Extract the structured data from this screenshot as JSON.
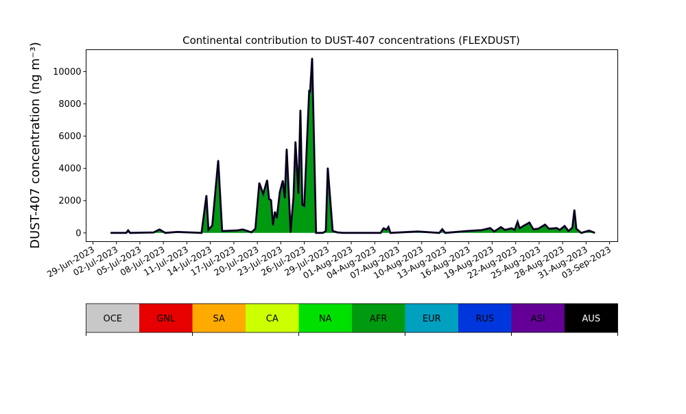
{
  "chart_data": {
    "type": "area",
    "stacked": true,
    "title": "Continental contribution to DUST-407 concentrations (FLEXDUST)",
    "ylabel": "DUST-407 concentration (ng m⁻³)",
    "xlabel": "",
    "xlim": [
      "2023-06-28T03:00",
      "2023-09-04T01:00"
    ],
    "ylim": [
      -540,
      11360
    ],
    "yticks": [
      0,
      2000,
      4000,
      6000,
      8000,
      10000
    ],
    "xticks": [
      "29-Jun-2023",
      "02-Jul-2023",
      "05-Jul-2023",
      "08-Jul-2023",
      "11-Jul-2023",
      "14-Jul-2023",
      "17-Jul-2023",
      "20-Jul-2023",
      "23-Jul-2023",
      "26-Jul-2023",
      "29-Jul-2023",
      "01-Aug-2023",
      "04-Aug-2023",
      "07-Aug-2023",
      "10-Aug-2023",
      "13-Aug-2023",
      "16-Aug-2023",
      "19-Aug-2023",
      "22-Aug-2023",
      "25-Aug-2023",
      "28-Aug-2023",
      "31-Aug-2023",
      "03-Sep-2023"
    ],
    "grid": false,
    "x": [
      "2023-07-01T06:00",
      "2023-07-03T06:00",
      "2023-07-03T12:00",
      "2023-07-03T18:00",
      "2023-07-06T18:00",
      "2023-07-07T12:00",
      "2023-07-08T06:00",
      "2023-07-09T18:00",
      "2023-07-12T21:00",
      "2023-07-13T12:00",
      "2023-07-13T18:00",
      "2023-07-14T06:00",
      "2023-07-15T00:00",
      "2023-07-15T12:00",
      "2023-07-17T12:00",
      "2023-07-18T03:00",
      "2023-07-19T06:00",
      "2023-07-19T18:00",
      "2023-07-20T06:00",
      "2023-07-20T18:00",
      "2023-07-21T06:00",
      "2023-07-21T12:00",
      "2023-07-21T18:00",
      "2023-07-22T00:00",
      "2023-07-22T06:00",
      "2023-07-22T12:00",
      "2023-07-22T21:00",
      "2023-07-23T06:00",
      "2023-07-23T12:00",
      "2023-07-23T18:00",
      "2023-07-24T06:00",
      "2023-07-24T15:00",
      "2023-07-24T21:00",
      "2023-07-25T06:00",
      "2023-07-25T12:00",
      "2023-07-25T18:00",
      "2023-07-26T00:00",
      "2023-07-26T15:00",
      "2023-07-26T18:00",
      "2023-07-27T00:00",
      "2023-07-27T12:00",
      "2023-07-28T09:00",
      "2023-07-28T18:00",
      "2023-07-29T00:00",
      "2023-07-29T15:00",
      "2023-07-30T06:00",
      "2023-07-31T00:00",
      "2023-08-04T18:00",
      "2023-08-05T03:00",
      "2023-08-05T12:00",
      "2023-08-05T18:00",
      "2023-08-06T00:00",
      "2023-08-09T12:00",
      "2023-08-12T06:00",
      "2023-08-12T15:00",
      "2023-08-13T00:00",
      "2023-08-15T18:00",
      "2023-08-17T15:00",
      "2023-08-18T18:00",
      "2023-08-19T06:00",
      "2023-08-20T03:00",
      "2023-08-20T15:00",
      "2023-08-21T12:00",
      "2023-08-21T21:00",
      "2023-08-22T06:00",
      "2023-08-22T12:00",
      "2023-08-23T03:00",
      "2023-08-23T18:00",
      "2023-08-24T06:00",
      "2023-08-24T21:00",
      "2023-08-25T18:00",
      "2023-08-26T06:00",
      "2023-08-27T06:00",
      "2023-08-27T15:00",
      "2023-08-28T06:00",
      "2023-08-28T18:00",
      "2023-08-29T06:00",
      "2023-08-29T12:00",
      "2023-08-29T18:00",
      "2023-08-30T09:00",
      "2023-08-31T09:00",
      "2023-09-01T03:00"
    ],
    "series": [
      {
        "name": "AFR",
        "color": "#009a10",
        "values": [
          0,
          0,
          156,
          0,
          30,
          213,
          0,
          60,
          0,
          2312,
          184,
          468,
          4482,
          113,
          156,
          213,
          40,
          255,
          3092,
          2411,
          3262,
          2100,
          2028,
          496,
          1305,
          936,
          2525,
          3234,
          2170,
          5191,
          43,
          2241,
          5645,
          2454,
          7603,
          1745,
          1674,
          8794,
          8766,
          10822,
          0,
          0,
          113,
          4014,
          113,
          28,
          0,
          0,
          284,
          200,
          369,
          0,
          85,
          0,
          227,
          0,
          113,
          170,
          298,
          85,
          355,
          184,
          284,
          184,
          680,
          284,
          468,
          638,
          227,
          255,
          510,
          255,
          298,
          184,
          425,
          113,
          326,
          1418,
          255,
          0,
          142,
          0
        ]
      }
    ],
    "legend": {
      "placement": "bottom",
      "entries": [
        {
          "name": "OCE",
          "color": "#c8c8c8"
        },
        {
          "name": "GNL",
          "color": "#e60000"
        },
        {
          "name": "SA",
          "color": "#ffaa00"
        },
        {
          "name": "CA",
          "color": "#ccff00"
        },
        {
          "name": "NA",
          "color": "#00e000"
        },
        {
          "name": "AFR",
          "color": "#009a10"
        },
        {
          "name": "EUR",
          "color": "#00a0c0"
        },
        {
          "name": "RUS",
          "color": "#0037dc"
        },
        {
          "name": "ASI",
          "color": "#640096"
        },
        {
          "name": "AUS",
          "color": "#000000"
        }
      ]
    }
  }
}
